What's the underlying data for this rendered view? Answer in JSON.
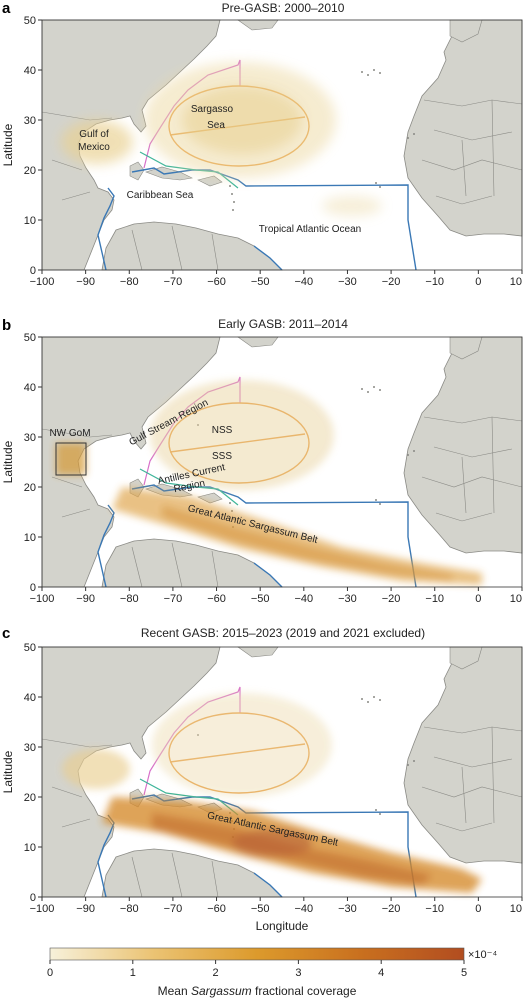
{
  "panels": [
    {
      "label": "a",
      "title": "Pre-GASB: 2000–2010",
      "ylabel": "Latitude",
      "annotations": [
        "Sargasso",
        "Sea",
        "Gulf of",
        "Mexico",
        "Caribbean Sea",
        "Tropical Atlantic Ocean"
      ]
    },
    {
      "label": "b",
      "title": "Early GASB: 2011–2014",
      "ylabel": "Latitude",
      "annotations": [
        "NW GoM",
        "Gulf Stream Region",
        "NSS",
        "SSS",
        "Antilles Current",
        "Region",
        "Great Atlantic Sargassum Belt"
      ]
    },
    {
      "label": "c",
      "title": "Recent GASB: 2015–2023 (2019 and 2021 excluded)",
      "ylabel": "Latitude",
      "xlabel": "Longitude",
      "annotations": [
        "Great Atlantic Sargassum Belt"
      ]
    }
  ],
  "axes": {
    "x_ticks": [
      "−100",
      "−90",
      "−80",
      "−70",
      "−60",
      "−50",
      "−40",
      "−30",
      "−20",
      "−10",
      "0",
      "10"
    ],
    "y_ticks": [
      "0",
      "10",
      "20",
      "30",
      "40",
      "50"
    ]
  },
  "colorbar": {
    "ticks": [
      "0",
      "1",
      "2",
      "3",
      "4",
      "5"
    ],
    "multiplier": "×10⁻⁴",
    "label_pre": "Mean ",
    "label_italic": "Sargassum",
    "label_post": " fractional coverage",
    "colors": [
      "#f7f1da",
      "#ebc373",
      "#dc9a2c",
      "#c9701f",
      "#b24d20"
    ]
  },
  "colors": {
    "ocean": "#ffffff",
    "land": "#d3d3cc",
    "coast": "#8a8a85",
    "region_box": "#3a78b5",
    "sargasso_ellipse": "#e89a3c",
    "gulf_stream": "#d770c9",
    "antilles": "#3eb59a",
    "gom_box": "#333333"
  }
}
